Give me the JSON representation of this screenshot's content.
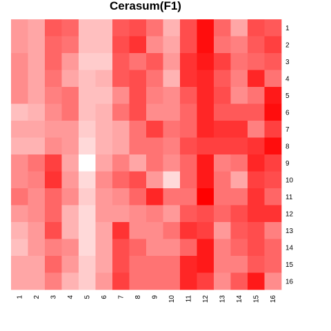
{
  "chart_data": {
    "type": "heatmap",
    "title": "Cerasum(F1)",
    "xlabel": "",
    "ylabel": "",
    "x_labels": [
      "1",
      "2",
      "3",
      "4",
      "5",
      "6",
      "7",
      "8",
      "9",
      "10",
      "11",
      "12",
      "13",
      "14",
      "15",
      "16"
    ],
    "y_labels": [
      "1",
      "2",
      "3",
      "4",
      "5",
      "6",
      "7",
      "8",
      "9",
      "10",
      "11",
      "12",
      "13",
      "14",
      "15",
      "16"
    ],
    "colormap": {
      "low": "#ffffff",
      "high": "#ff0000"
    },
    "value_range": [
      0,
      1
    ],
    "legend": "none",
    "grid": false,
    "values": [
      [
        0.4,
        0.35,
        0.65,
        0.6,
        0.25,
        0.25,
        0.65,
        0.7,
        0.55,
        0.3,
        0.7,
        0.95,
        0.6,
        0.35,
        0.7,
        0.65
      ],
      [
        0.4,
        0.35,
        0.6,
        0.55,
        0.25,
        0.25,
        0.7,
        0.8,
        0.45,
        0.35,
        0.7,
        0.95,
        0.55,
        0.5,
        0.65,
        0.75
      ],
      [
        0.45,
        0.35,
        0.6,
        0.4,
        0.2,
        0.2,
        0.65,
        0.55,
        0.65,
        0.4,
        0.8,
        0.9,
        0.75,
        0.55,
        0.6,
        0.65
      ],
      [
        0.45,
        0.35,
        0.55,
        0.35,
        0.25,
        0.3,
        0.65,
        0.7,
        0.55,
        0.3,
        0.8,
        0.85,
        0.65,
        0.5,
        0.85,
        0.55
      ],
      [
        0.45,
        0.35,
        0.5,
        0.55,
        0.25,
        0.25,
        0.45,
        0.7,
        0.5,
        0.45,
        0.65,
        0.85,
        0.7,
        0.45,
        0.55,
        0.9
      ],
      [
        0.25,
        0.3,
        0.45,
        0.55,
        0.25,
        0.3,
        0.55,
        0.7,
        0.45,
        0.45,
        0.6,
        0.85,
        0.65,
        0.65,
        0.65,
        0.95
      ],
      [
        0.35,
        0.35,
        0.4,
        0.4,
        0.2,
        0.3,
        0.35,
        0.55,
        0.75,
        0.55,
        0.6,
        0.85,
        0.8,
        0.8,
        0.5,
        0.75
      ],
      [
        0.3,
        0.3,
        0.45,
        0.4,
        0.15,
        0.3,
        0.35,
        0.55,
        0.55,
        0.5,
        0.7,
        0.75,
        0.75,
        0.75,
        0.8,
        0.95
      ],
      [
        0.45,
        0.55,
        0.75,
        0.35,
        0.0,
        0.35,
        0.5,
        0.35,
        0.55,
        0.45,
        0.6,
        0.9,
        0.5,
        0.55,
        0.85,
        0.75
      ],
      [
        0.45,
        0.5,
        0.8,
        0.4,
        0.15,
        0.45,
        0.6,
        0.7,
        0.4,
        0.15,
        0.6,
        0.9,
        0.55,
        0.35,
        0.75,
        0.7
      ],
      [
        0.55,
        0.45,
        0.6,
        0.45,
        0.2,
        0.4,
        0.45,
        0.6,
        0.85,
        0.55,
        0.55,
        1.0,
        0.55,
        0.55,
        0.8,
        0.6
      ],
      [
        0.4,
        0.45,
        0.6,
        0.3,
        0.15,
        0.4,
        0.4,
        0.45,
        0.5,
        0.4,
        0.65,
        0.7,
        0.6,
        0.7,
        0.8,
        0.8
      ],
      [
        0.3,
        0.4,
        0.7,
        0.3,
        0.15,
        0.35,
        0.8,
        0.45,
        0.45,
        0.55,
        0.8,
        0.75,
        0.4,
        0.65,
        0.7,
        0.5
      ],
      [
        0.25,
        0.4,
        0.5,
        0.45,
        0.15,
        0.35,
        0.7,
        0.6,
        0.45,
        0.45,
        0.6,
        0.9,
        0.5,
        0.6,
        0.7,
        0.6
      ],
      [
        0.35,
        0.35,
        0.6,
        0.4,
        0.2,
        0.35,
        0.7,
        0.55,
        0.55,
        0.55,
        0.85,
        0.9,
        0.5,
        0.5,
        0.65,
        0.6
      ],
      [
        0.35,
        0.35,
        0.5,
        0.3,
        0.2,
        0.4,
        0.75,
        0.55,
        0.55,
        0.55,
        0.85,
        0.75,
        0.45,
        0.65,
        0.9,
        0.45
      ]
    ]
  }
}
